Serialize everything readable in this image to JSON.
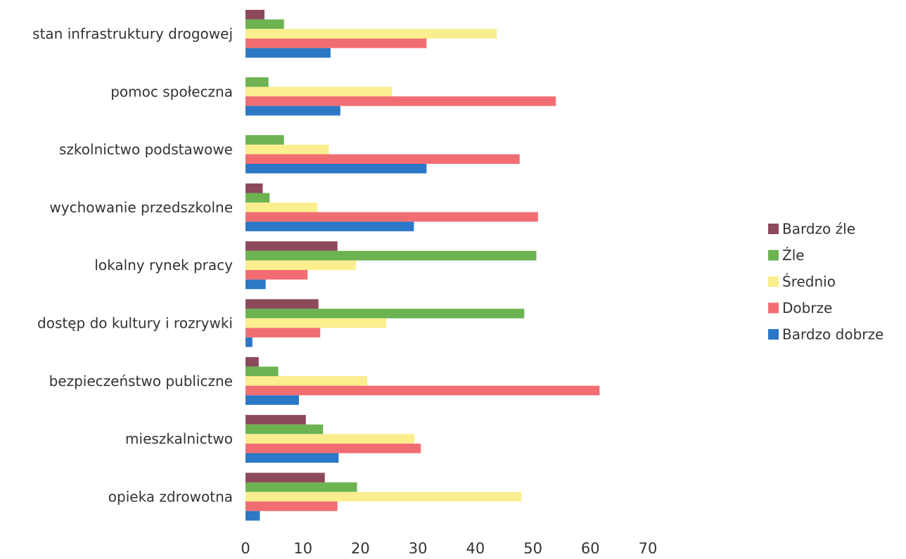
{
  "chart_data": {
    "type": "bar",
    "orientation": "horizontal",
    "categories": [
      "stan infrastruktury drogowej",
      "pomoc społeczna",
      "szkolnictwo podstawowe",
      "wychowanie przedszkolne",
      "lokalny rynek pracy",
      "dostęp do kultury i rozrywki",
      "bezpieczeństwo publiczne",
      "mieszkalnictwo",
      "opieka zdrowotna"
    ],
    "series": [
      {
        "name": "Bardzo źle",
        "color": "#8B4A5A",
        "values": [
          3.3,
          0,
          0,
          3.0,
          16.0,
          12.7,
          2.3,
          10.5,
          13.8
        ]
      },
      {
        "name": "Źle",
        "color": "#6DB352",
        "values": [
          6.7,
          4.0,
          6.7,
          4.2,
          50.6,
          48.5,
          5.7,
          13.5,
          19.4
        ]
      },
      {
        "name": "Średnio",
        "color": "#FAEE8E",
        "values": [
          43.7,
          25.5,
          14.5,
          12.5,
          19.2,
          24.5,
          21.2,
          29.4,
          48.0
        ]
      },
      {
        "name": "Dobrze",
        "color": "#F26D72",
        "values": [
          31.5,
          54.0,
          47.7,
          50.9,
          10.8,
          13.0,
          61.6,
          30.5,
          16.0
        ]
      },
      {
        "name": "Bardzo dobrze",
        "color": "#2C77C6",
        "values": [
          14.8,
          16.5,
          31.5,
          29.3,
          3.5,
          1.2,
          9.3,
          16.2,
          2.5
        ]
      }
    ],
    "x_ticks": [
      "0",
      "10",
      "20",
      "30",
      "40",
      "50",
      "60",
      "70"
    ],
    "xlim": [
      0,
      70
    ],
    "title": "",
    "xlabel": "",
    "ylabel": "",
    "legend_position": "right",
    "grid": false
  }
}
